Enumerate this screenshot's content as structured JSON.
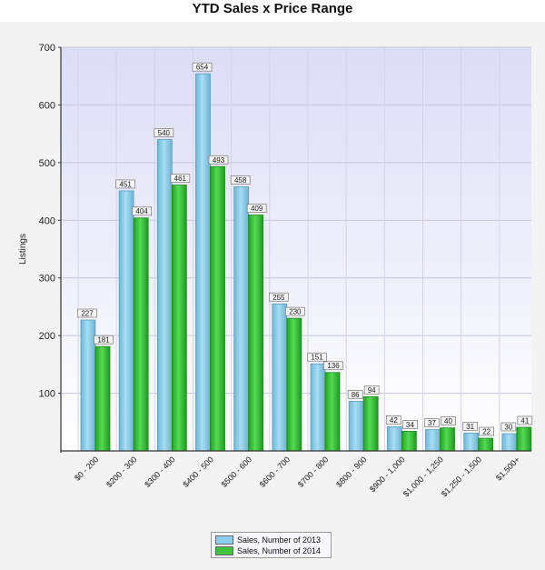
{
  "chart_data": {
    "type": "bar",
    "title": "YTD Sales x Price Range",
    "xlabel": "",
    "ylabel": "Listings",
    "ylim": [
      0,
      700
    ],
    "yticks": [
      100,
      200,
      300,
      400,
      500,
      600,
      700
    ],
    "grid": true,
    "legend_position": "bottom",
    "categories": [
      "$0 - 200",
      "$200 - 300",
      "$300 - 400",
      "$400 - 500",
      "$500 - 600",
      "$600 - 700",
      "$700 - 800",
      "$800 - 900",
      "$900 - 1,000",
      "$1,000 - 1,250",
      "$1,250 - 1,500",
      "$1,500+"
    ],
    "series": [
      {
        "name": "Sales, Number of 2013",
        "color": "#8ccfec",
        "values": [
          227,
          451,
          540,
          654,
          458,
          255,
          151,
          86,
          42,
          37,
          31,
          30
        ]
      },
      {
        "name": "Sales, Number of 2014",
        "color": "#3cc43c",
        "values": [
          181,
          404,
          461,
          493,
          409,
          230,
          136,
          94,
          34,
          40,
          22,
          41
        ]
      }
    ]
  }
}
